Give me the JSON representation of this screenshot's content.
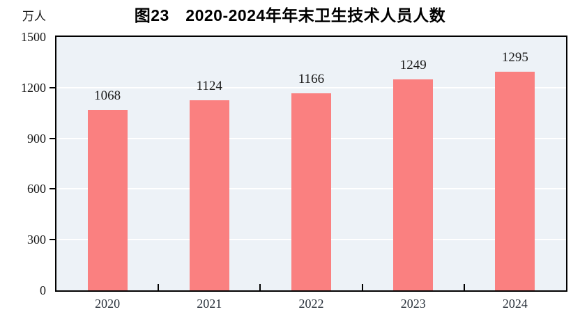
{
  "figure": {
    "title": "图23　2020-2024年年末卫生技术人员人数",
    "unit_label": "万人"
  },
  "chart_data": {
    "type": "bar",
    "title": "图23　2020-2024年年末卫生技术人员人数",
    "categories": [
      "2020",
      "2021",
      "2022",
      "2023",
      "2024"
    ],
    "values": [
      1068,
      1124,
      1166,
      1249,
      1295
    ],
    "xlabel": "",
    "ylabel": "万人",
    "ylim": [
      0,
      1500
    ],
    "yticks": [
      0,
      300,
      600,
      900,
      1200,
      1500
    ],
    "grid": true,
    "legend": false,
    "bar_color": "#FA8080",
    "plot_background": "#EDF2F7",
    "gridline_color": "#FFFFFF",
    "axis_color": "#000000",
    "label_color": "#1A1A1A"
  }
}
